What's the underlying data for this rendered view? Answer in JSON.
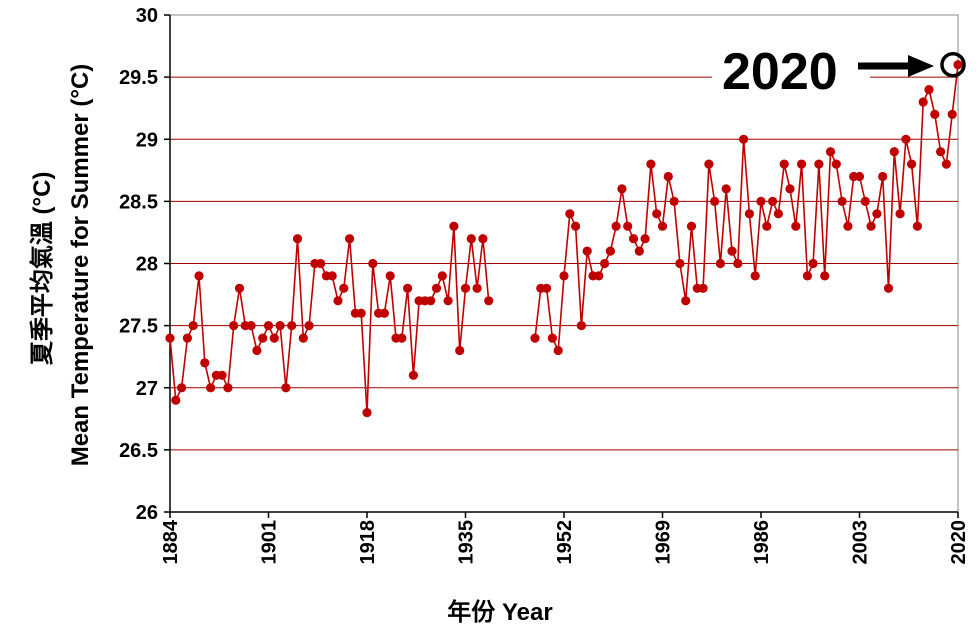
{
  "colors": {
    "series": "#c00000",
    "gridline": "#a00000",
    "axis": "#000000"
  },
  "annotation": {
    "label": "2020",
    "arrow_icon": "right-arrow-icon",
    "target_year": 2020
  },
  "chart_data": {
    "type": "line",
    "title": "",
    "xlabel": "年份  Year",
    "ylabel": "夏季平均氣溫 (°C) Mean Temperature for Summer (°C)",
    "ylabel_lines": [
      "夏季平均氣溫 (°C)",
      "Mean Temperature for Summer (°C)"
    ],
    "xlim": [
      1884,
      2020
    ],
    "ylim": [
      26,
      30
    ],
    "x_ticks": [
      1884,
      1901,
      1918,
      1935,
      1952,
      1969,
      1986,
      2003,
      2020
    ],
    "y_ticks": [
      26,
      26.5,
      27,
      27.5,
      28,
      28.5,
      29,
      29.5,
      30
    ],
    "y_tick_labels": [
      "26",
      "26.5",
      "27",
      "27.5",
      "28",
      "28.5",
      "29",
      "29.5",
      "30"
    ],
    "grid": true,
    "legend": "none",
    "series": [
      {
        "segments": [
          {
            "x": [
              1884,
              1885,
              1886,
              1887,
              1888,
              1889,
              1890,
              1891,
              1892,
              1893,
              1894,
              1895,
              1896,
              1897,
              1898,
              1899,
              1900,
              1901,
              1902,
              1903,
              1904,
              1905,
              1906,
              1907,
              1908,
              1909,
              1910,
              1911,
              1912,
              1913,
              1914,
              1915,
              1916,
              1917,
              1918,
              1919,
              1920,
              1921,
              1922,
              1923,
              1924,
              1925,
              1926,
              1927,
              1928,
              1929,
              1930,
              1931,
              1932,
              1933,
              1934,
              1935,
              1936,
              1937,
              1938,
              1939
            ],
            "y": [
              27.4,
              26.9,
              27.0,
              27.4,
              27.5,
              27.9,
              27.2,
              27.0,
              27.1,
              27.1,
              27.0,
              27.5,
              27.8,
              27.5,
              27.5,
              27.3,
              27.4,
              27.5,
              27.4,
              27.5,
              27.0,
              27.5,
              28.2,
              27.4,
              27.5,
              28.0,
              28.0,
              27.9,
              27.9,
              27.7,
              27.8,
              28.2,
              27.6,
              27.6,
              26.8,
              28.0,
              27.6,
              27.6,
              27.9,
              27.4,
              27.4,
              27.8,
              27.1,
              27.7,
              27.7,
              27.7,
              27.8,
              27.9,
              27.7,
              28.3,
              27.3,
              27.8,
              28.2,
              27.8,
              28.2,
              27.7
            ]
          },
          {
            "x": [
              1947,
              1948,
              1949,
              1950,
              1951,
              1952,
              1953,
              1954,
              1955,
              1956,
              1957,
              1958,
              1959,
              1960,
              1961,
              1962,
              1963,
              1964,
              1965,
              1966,
              1967,
              1968,
              1969,
              1970,
              1971,
              1972,
              1973,
              1974,
              1975,
              1976,
              1977,
              1978,
              1979,
              1980,
              1981,
              1982,
              1983,
              1984,
              1985,
              1986,
              1987,
              1988,
              1989,
              1990,
              1991,
              1992,
              1993,
              1994,
              1995,
              1996,
              1997,
              1998,
              1999,
              2000,
              2001,
              2002,
              2003,
              2004,
              2005,
              2006,
              2007,
              2008,
              2009,
              2010,
              2011,
              2012,
              2013,
              2014,
              2015,
              2016,
              2017,
              2018,
              2019,
              2020
            ],
            "y": [
              27.4,
              27.8,
              27.8,
              27.4,
              27.3,
              27.9,
              28.4,
              28.3,
              27.5,
              28.1,
              27.9,
              27.9,
              28.0,
              28.1,
              28.3,
              28.6,
              28.3,
              28.2,
              28.1,
              28.2,
              28.8,
              28.4,
              28.3,
              28.7,
              28.5,
              28.0,
              27.7,
              28.3,
              27.8,
              27.8,
              28.8,
              28.5,
              28.0,
              28.6,
              28.1,
              28.0,
              29.0,
              28.4,
              27.9,
              28.5,
              28.3,
              28.5,
              28.4,
              28.8,
              28.6,
              28.3,
              28.8,
              27.9,
              28.0,
              28.8,
              27.9,
              28.9,
              28.8,
              28.5,
              28.3,
              28.7,
              28.7,
              28.5,
              28.3,
              28.4,
              28.7,
              27.8,
              28.9,
              28.4,
              29.0,
              28.8,
              28.3,
              29.3,
              29.4,
              29.2,
              28.9,
              28.8,
              29.2,
              29.6
            ]
          }
        ]
      }
    ]
  }
}
